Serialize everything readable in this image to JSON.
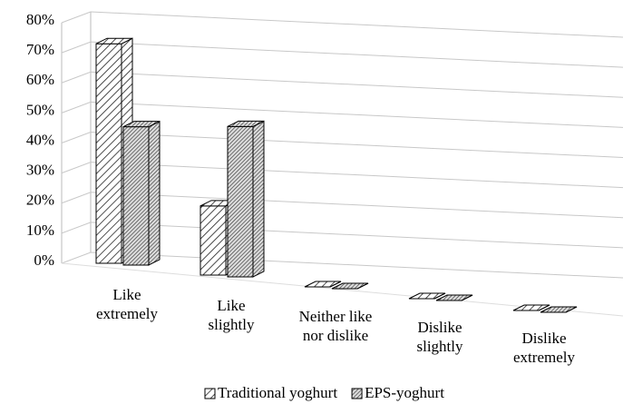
{
  "chart_data": {
    "type": "bar3d",
    "categories": [
      "Like\nextremely",
      "Like\nslightly",
      "Neither like\nnor dislike",
      "Dislike\nslightly",
      "Dislike\nextremely"
    ],
    "series": [
      {
        "name": "Traditional yoghurt",
        "color": "#ffffff",
        "values": [
          73,
          23,
          0,
          0,
          0
        ]
      },
      {
        "name": "EPS-yoghurt",
        "color": "#a0a0a0",
        "values": [
          46,
          50,
          0,
          0,
          0
        ]
      }
    ],
    "ylim": [
      0,
      80
    ],
    "yticks": [
      {
        "value": 0,
        "label": "0%"
      },
      {
        "value": 10,
        "label": "10%"
      },
      {
        "value": 20,
        "label": "20%"
      },
      {
        "value": 30,
        "label": "30%"
      },
      {
        "value": 40,
        "label": "40%"
      },
      {
        "value": 50,
        "label": "50%"
      },
      {
        "value": 60,
        "label": "60%"
      },
      {
        "value": 70,
        "label": "70%"
      },
      {
        "value": 80,
        "label": "80%"
      }
    ],
    "grid": true,
    "legend": "bottom"
  }
}
